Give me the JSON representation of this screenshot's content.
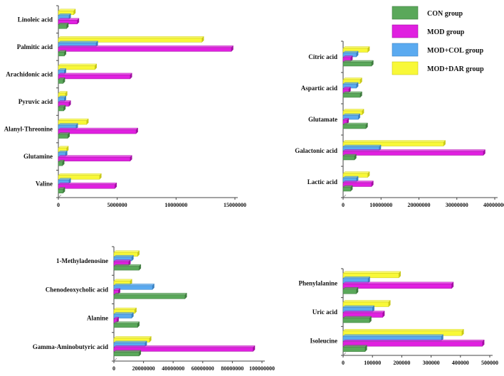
{
  "legend": [
    {
      "name": "CON group",
      "color": "#5aa85a"
    },
    {
      "name": "MOD group",
      "color": "#e020e0"
    },
    {
      "name": "MOD+COL group",
      "color": "#5aaaf0"
    },
    {
      "name": "MOD+DAR group",
      "color": "#f8f838"
    }
  ],
  "chart_data": [
    {
      "type": "bar",
      "orientation": "horizontal",
      "categories": [
        "Linoleic acid",
        "Palmitic acid",
        "Arachidonic acid",
        "Pyruvic acid",
        "Alanyl-Threonine",
        "Glutamine",
        "Valine"
      ],
      "series": [
        {
          "name": "CON group",
          "values": [
            700000,
            500000,
            400000,
            450000,
            800000,
            350000,
            400000
          ]
        },
        {
          "name": "MOD group",
          "values": [
            1600000,
            14700000,
            6100000,
            900000,
            6600000,
            6100000,
            4800000
          ]
        },
        {
          "name": "MOD+COL group",
          "values": [
            900000,
            3200000,
            500000,
            500000,
            1500000,
            600000,
            900000
          ]
        },
        {
          "name": "MOD+DAR group",
          "values": [
            1300000,
            12200000,
            3100000,
            600000,
            2400000,
            700000,
            3500000
          ]
        }
      ],
      "xticks": [
        "0",
        "5000000",
        "10000000",
        "15000000"
      ],
      "xlim": [
        0,
        15000000
      ]
    },
    {
      "type": "bar",
      "orientation": "horizontal",
      "categories": [
        "Citric acid",
        "Aspartic acid",
        "Glutamate",
        "Galactonic acid",
        "Lactic acid"
      ],
      "series": [
        {
          "name": "CON group",
          "values": [
            7500000,
            4500000,
            6000000,
            3000000,
            2000000
          ]
        },
        {
          "name": "MOD group",
          "values": [
            2000000,
            1500000,
            1000000,
            37000000,
            7500000
          ]
        },
        {
          "name": "MOD+COL group",
          "values": [
            3500000,
            3500000,
            4000000,
            9500000,
            3500000
          ]
        },
        {
          "name": "MOD+DAR group",
          "values": [
            6500000,
            4500000,
            5000000,
            26500000,
            6500000
          ]
        }
      ],
      "xticks": [
        "0",
        "10000000",
        "20000000",
        "30000000",
        "40000000"
      ],
      "xlim": [
        0,
        40000000
      ]
    },
    {
      "type": "bar",
      "orientation": "horizontal",
      "categories": [
        "1-Methyladenosine",
        "Chenodeoxycholic acid",
        "Alanine",
        "Gamma-Aminobutyric acid"
      ],
      "series": [
        {
          "name": "CON group",
          "values": [
            17000000,
            48000000,
            16000000,
            17000000
          ]
        },
        {
          "name": "MOD group",
          "values": [
            10000000,
            3000000,
            2000000,
            94000000
          ]
        },
        {
          "name": "MOD+COL group",
          "values": [
            12000000,
            26000000,
            12000000,
            21000000
          ]
        },
        {
          "name": "MOD+DAR group",
          "values": [
            16000000,
            11000000,
            14000000,
            24000000
          ]
        }
      ],
      "xticks": [
        "0",
        "20000000",
        "40000000",
        "60000000",
        "80000000",
        "100000000"
      ],
      "xlim": [
        0,
        100000000
      ]
    },
    {
      "type": "bar",
      "orientation": "horizontal",
      "categories": [
        "Phenylalanine",
        "Uric acid",
        "Isoleucine"
      ],
      "series": [
        {
          "name": "CON group",
          "values": [
            45000,
            90000,
            75000
          ]
        },
        {
          "name": "MOD group",
          "values": [
            370000,
            135000,
            475000
          ]
        },
        {
          "name": "MOD+COL group",
          "values": [
            85000,
            100000,
            335000
          ]
        },
        {
          "name": "MOD+DAR group",
          "values": [
            190000,
            155000,
            405000
          ]
        }
      ],
      "xticks": [
        "0",
        "100000",
        "200000",
        "300000",
        "400000",
        "500000"
      ],
      "xlim": [
        0,
        500000
      ]
    }
  ]
}
